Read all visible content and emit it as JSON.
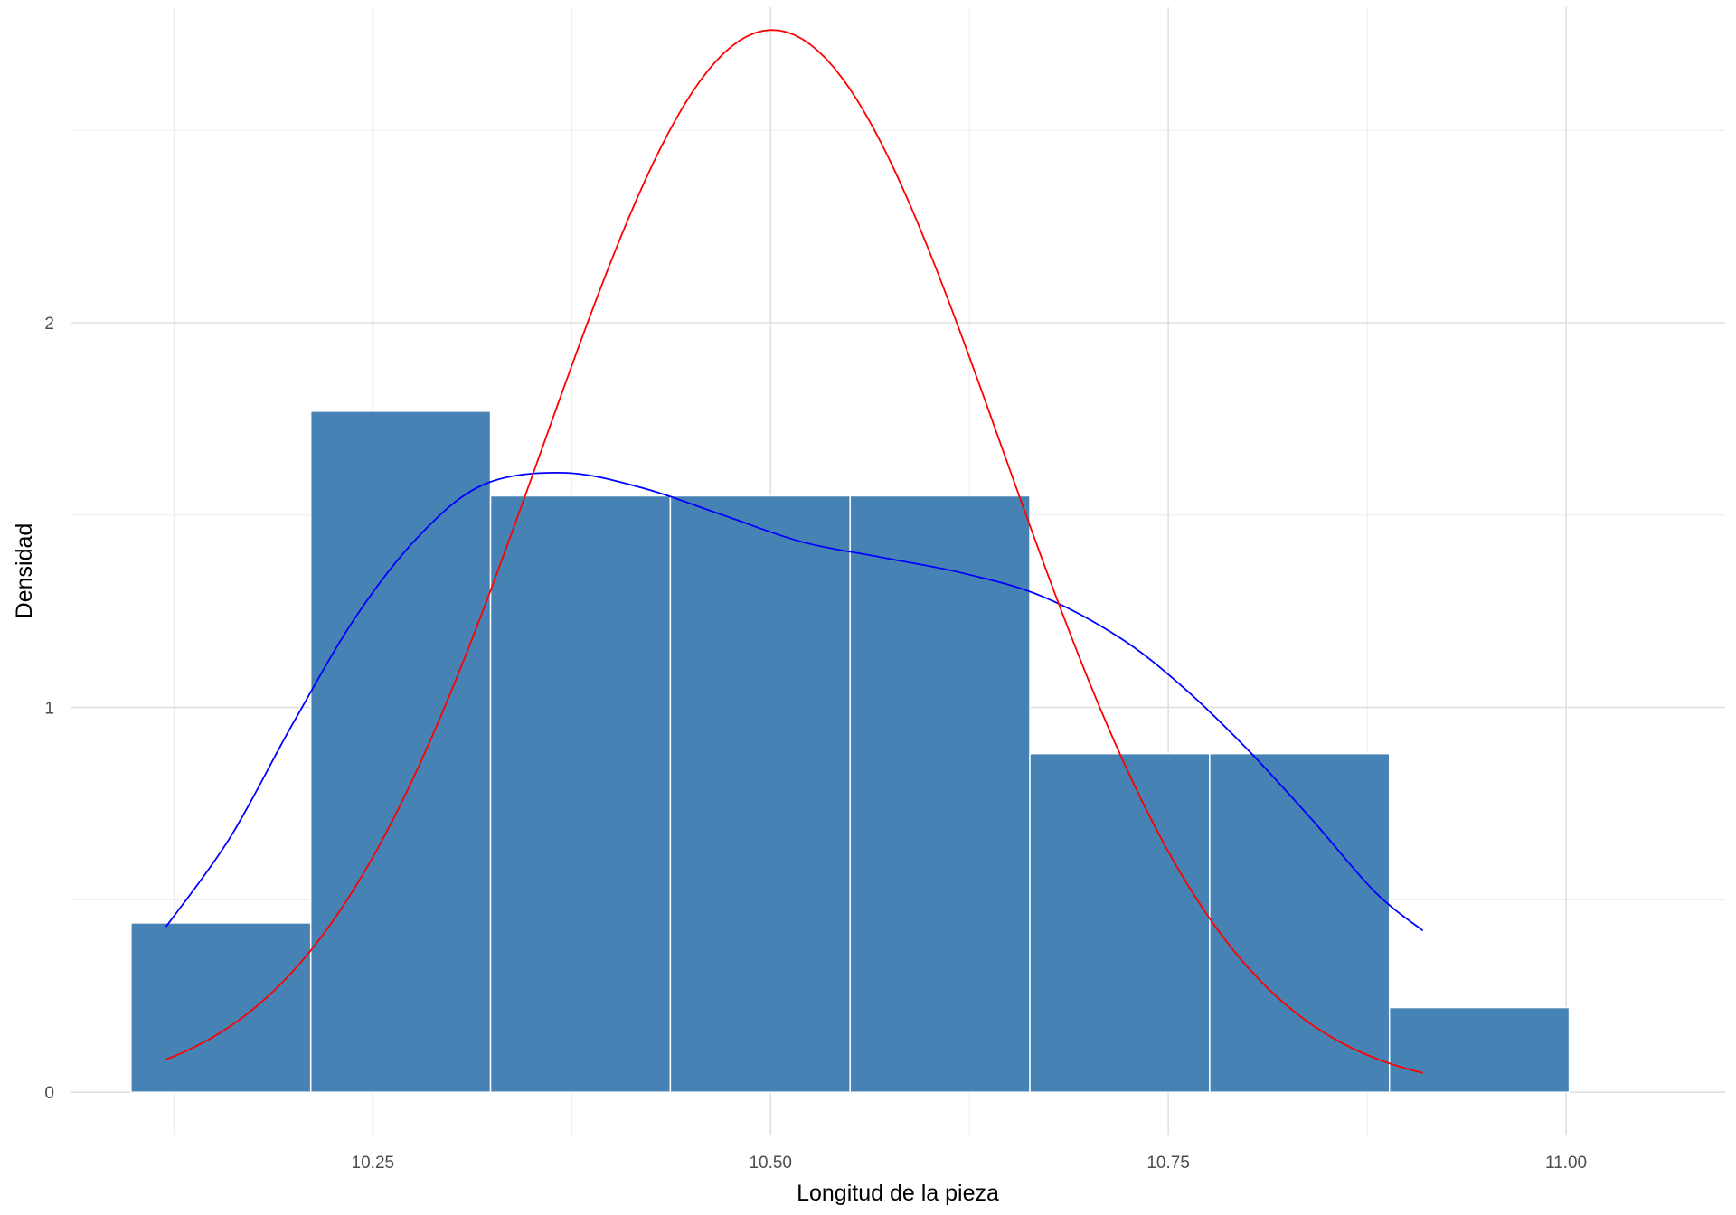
{
  "chart_data": {
    "type": "bar",
    "xlabel": "Longitud de la pieza",
    "ylabel": "Densidad",
    "xlim": [
      10.06,
      11.1
    ],
    "ylim": [
      -0.11,
      2.82
    ],
    "x_ticks": [
      {
        "value": 10.25,
        "label": "10.25"
      },
      {
        "value": 10.5,
        "label": "10.50"
      },
      {
        "value": 10.75,
        "label": "10.75"
      },
      {
        "value": 11.0,
        "label": "11.00"
      }
    ],
    "y_ticks": [
      {
        "value": 0,
        "label": "0"
      },
      {
        "value": 1,
        "label": "1"
      },
      {
        "value": 2,
        "label": "2"
      }
    ],
    "grid": true,
    "legend": "none",
    "histogram": {
      "fill_color": "#4682b4",
      "border_color": "#ffffff",
      "bins": [
        {
          "x0": 10.098,
          "x1": 10.211,
          "density": 0.44
        },
        {
          "x0": 10.211,
          "x1": 10.324,
          "density": 1.77
        },
        {
          "x0": 10.324,
          "x1": 10.437,
          "density": 1.55
        },
        {
          "x0": 10.437,
          "x1": 10.55,
          "density": 1.55
        },
        {
          "x0": 10.55,
          "x1": 10.663,
          "density": 1.55
        },
        {
          "x0": 10.663,
          "x1": 10.776,
          "density": 0.88
        },
        {
          "x0": 10.776,
          "x1": 10.889,
          "density": 0.88
        },
        {
          "x0": 10.889,
          "x1": 11.002,
          "density": 0.22
        }
      ]
    },
    "series": [
      {
        "kind": "kernel-density",
        "color": "#0000ff",
        "x": [
          10.12,
          10.16,
          10.2,
          10.24,
          10.28,
          10.32,
          10.37,
          10.42,
          10.47,
          10.52,
          10.57,
          10.62,
          10.67,
          10.72,
          10.76,
          10.8,
          10.84,
          10.88,
          10.91
        ],
        "y": [
          0.43,
          0.66,
          0.96,
          1.24,
          1.45,
          1.58,
          1.61,
          1.57,
          1.5,
          1.43,
          1.39,
          1.35,
          1.29,
          1.18,
          1.05,
          0.89,
          0.71,
          0.52,
          0.42
        ]
      },
      {
        "kind": "normal-density",
        "color": "#ff0000",
        "mean": 10.501,
        "sd": 0.1445,
        "x_range": [
          10.12,
          10.91
        ]
      }
    ]
  }
}
